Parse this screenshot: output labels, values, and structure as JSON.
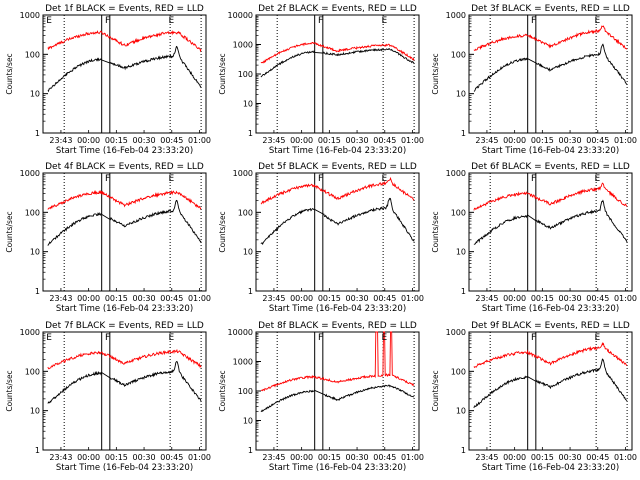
{
  "chart_data": [
    {
      "type": "line",
      "title": "Det 1f BLACK = Events, RED = LLD",
      "xlabel": "Start Time (16-Feb-04 23:33:20)",
      "ylabel": "Counts/sec",
      "yscale": "log",
      "ylim": [
        1,
        1000
      ],
      "y_ticks": [
        "1",
        "10",
        "100",
        "1000"
      ],
      "x_ticks": [
        "23:43",
        "00:00",
        "00:15",
        "00:30",
        "00:45",
        "01:00"
      ],
      "markers": [
        "E",
        "F",
        "E"
      ],
      "series": [
        {
          "color": "#ff0000",
          "base": 140,
          "peak1": 360,
          "dip": 170,
          "peak2": 360,
          "end": 100,
          "spike": 1.0
        },
        {
          "color": "#000000",
          "base": 12,
          "peak1": 75,
          "dip": 45,
          "peak2": 90,
          "end": 10,
          "spike": 1.8
        }
      ]
    },
    {
      "type": "line",
      "title": "Det 2f BLACK = Events, RED = LLD",
      "xlabel": "Start Time (16-Feb-04 23:33:20)",
      "ylabel": "Counts/sec",
      "yscale": "log",
      "ylim": [
        1,
        10000
      ],
      "y_ticks": [
        "1",
        "10",
        "100",
        "1000",
        "10000"
      ],
      "x_ticks": [
        "23:45",
        "00:00",
        "00:15",
        "00:30",
        "00:45",
        "01:00"
      ],
      "markers": [
        "F",
        "E"
      ],
      "series": [
        {
          "color": "#ff0000",
          "base": 230,
          "peak1": 1100,
          "dip": 600,
          "peak2": 950,
          "end": 240,
          "spike": 1.0
        },
        {
          "color": "#000000",
          "base": 80,
          "peak1": 560,
          "dip": 450,
          "peak2": 680,
          "end": 180,
          "spike": 1.0
        }
      ]
    },
    {
      "type": "line",
      "title": "Det 3f BLACK = Events, RED = LLD",
      "xlabel": "Start Time (16-Feb-04 23:33:20)",
      "ylabel": "Counts/sec",
      "yscale": "log",
      "ylim": [
        1,
        1000
      ],
      "y_ticks": [
        "1",
        "10",
        "100",
        "1000"
      ],
      "x_ticks": [
        "23:45",
        "00:00",
        "00:15",
        "00:30",
        "00:45",
        "01:00"
      ],
      "markers": [
        "F",
        "E"
      ],
      "series": [
        {
          "color": "#ff0000",
          "base": 130,
          "peak1": 300,
          "dip": 160,
          "peak2": 400,
          "end": 110,
          "spike": 1.3
        },
        {
          "color": "#000000",
          "base": 12,
          "peak1": 75,
          "dip": 40,
          "peak2": 100,
          "end": 12,
          "spike": 1.8
        }
      ]
    },
    {
      "type": "line",
      "title": "Det 4f BLACK = Events, RED = LLD",
      "xlabel": "Start Time (16-Feb-04 23:33:20)",
      "ylabel": "Counts/sec",
      "yscale": "log",
      "ylim": [
        1,
        1000
      ],
      "y_ticks": [
        "1",
        "10",
        "100",
        "1000"
      ],
      "x_ticks": [
        "23:43",
        "00:00",
        "00:15",
        "00:30",
        "00:45",
        "01:00"
      ],
      "markers": [
        "F",
        "E"
      ],
      "series": [
        {
          "color": "#ff0000",
          "base": 120,
          "peak1": 320,
          "dip": 150,
          "peak2": 320,
          "end": 100,
          "spike": 1.0
        },
        {
          "color": "#000000",
          "base": 15,
          "peak1": 90,
          "dip": 45,
          "peak2": 110,
          "end": 12,
          "spike": 1.8
        }
      ]
    },
    {
      "type": "line",
      "title": "Det 5f BLACK = Events, RED = LLD",
      "xlabel": "Start Time (16-Feb-04 23:33:20)",
      "ylabel": "Counts/sec",
      "yscale": "log",
      "ylim": [
        1,
        1000
      ],
      "y_ticks": [
        "1",
        "10",
        "100",
        "1000"
      ],
      "x_ticks": [
        "23:45",
        "00:00",
        "00:15",
        "00:30",
        "00:45",
        "01:00"
      ],
      "markers": [
        "F",
        "E"
      ],
      "series": [
        {
          "color": "#ff0000",
          "base": 170,
          "peak1": 480,
          "dip": 220,
          "peak2": 550,
          "end": 170,
          "spike": 1.3
        },
        {
          "color": "#000000",
          "base": 15,
          "peak1": 120,
          "dip": 50,
          "peak2": 130,
          "end": 12,
          "spike": 1.8
        }
      ]
    },
    {
      "type": "line",
      "title": "Det 6f BLACK = Events, RED = LLD",
      "xlabel": "Start Time (16-Feb-04 23:33:20)",
      "ylabel": "Counts/sec",
      "yscale": "log",
      "ylim": [
        1,
        1000
      ],
      "y_ticks": [
        "1",
        "10",
        "100",
        "1000"
      ],
      "x_ticks": [
        "23:45",
        "00:00",
        "00:15",
        "00:30",
        "00:45",
        "01:00"
      ],
      "markers": [
        "F",
        "E"
      ],
      "series": [
        {
          "color": "#ff0000",
          "base": 120,
          "peak1": 300,
          "dip": 160,
          "peak2": 400,
          "end": 110,
          "spike": 1.3
        },
        {
          "color": "#000000",
          "base": 15,
          "peak1": 80,
          "dip": 40,
          "peak2": 110,
          "end": 12,
          "spike": 1.8
        }
      ]
    },
    {
      "type": "line",
      "title": "Det 7f BLACK = Events, RED = LLD",
      "xlabel": "Start Time (16-Feb-04 23:33:20)",
      "ylabel": "Counts/sec",
      "yscale": "log",
      "ylim": [
        1,
        1000
      ],
      "y_ticks": [
        "1",
        "10",
        "100",
        "1000"
      ],
      "x_ticks": [
        "23:43",
        "00:00",
        "00:15",
        "00:30",
        "00:45",
        "01:00"
      ],
      "markers": [
        "E",
        "F",
        "E"
      ],
      "series": [
        {
          "color": "#ff0000",
          "base": 120,
          "peak1": 300,
          "dip": 160,
          "peak2": 320,
          "end": 110,
          "spike": 1.0
        },
        {
          "color": "#000000",
          "base": 15,
          "peak1": 90,
          "dip": 45,
          "peak2": 100,
          "end": 12,
          "spike": 1.8
        }
      ]
    },
    {
      "type": "line",
      "title": "Det 8f BLACK = Events, RED = LLD",
      "xlabel": "Start Time (16-Feb-04 23:33:20)",
      "ylabel": "Counts/sec",
      "yscale": "log",
      "ylim": [
        1,
        10000
      ],
      "y_ticks": [
        "1",
        "10",
        "100",
        "1000",
        "10000"
      ],
      "x_ticks": [
        "23:45",
        "00:00",
        "00:15",
        "00:30",
        "00:45",
        "01:00"
      ],
      "markers": [
        "F",
        "E"
      ],
      "series": [
        {
          "color": "#ff0000",
          "base": 100,
          "peak1": 300,
          "dip": 200,
          "peak2": 350,
          "end": 130,
          "spike": 1.0,
          "bursts": [
            0.74,
            0.785,
            0.83
          ]
        },
        {
          "color": "#000000",
          "base": 20,
          "peak1": 100,
          "dip": 50,
          "peak2": 150,
          "end": 50,
          "spike": 1.0
        }
      ]
    },
    {
      "type": "line",
      "title": "Det 9f BLACK = Events, RED = LLD",
      "xlabel": "Start Time (16-Feb-04 23:33:20)",
      "ylabel": "Counts/sec",
      "yscale": "log",
      "ylim": [
        1,
        1000
      ],
      "y_ticks": [
        "1",
        "10",
        "100",
        "1000"
      ],
      "x_ticks": [
        "23:45",
        "00:00",
        "00:15",
        "00:30",
        "00:45",
        "01:00"
      ],
      "markers": [
        "F",
        "E"
      ],
      "series": [
        {
          "color": "#ff0000",
          "base": 130,
          "peak1": 300,
          "dip": 160,
          "peak2": 400,
          "end": 110,
          "spike": 1.3
        },
        {
          "color": "#000000",
          "base": 12,
          "peak1": 70,
          "dip": 40,
          "peak2": 110,
          "end": 12,
          "spike": 1.8
        }
      ]
    }
  ]
}
